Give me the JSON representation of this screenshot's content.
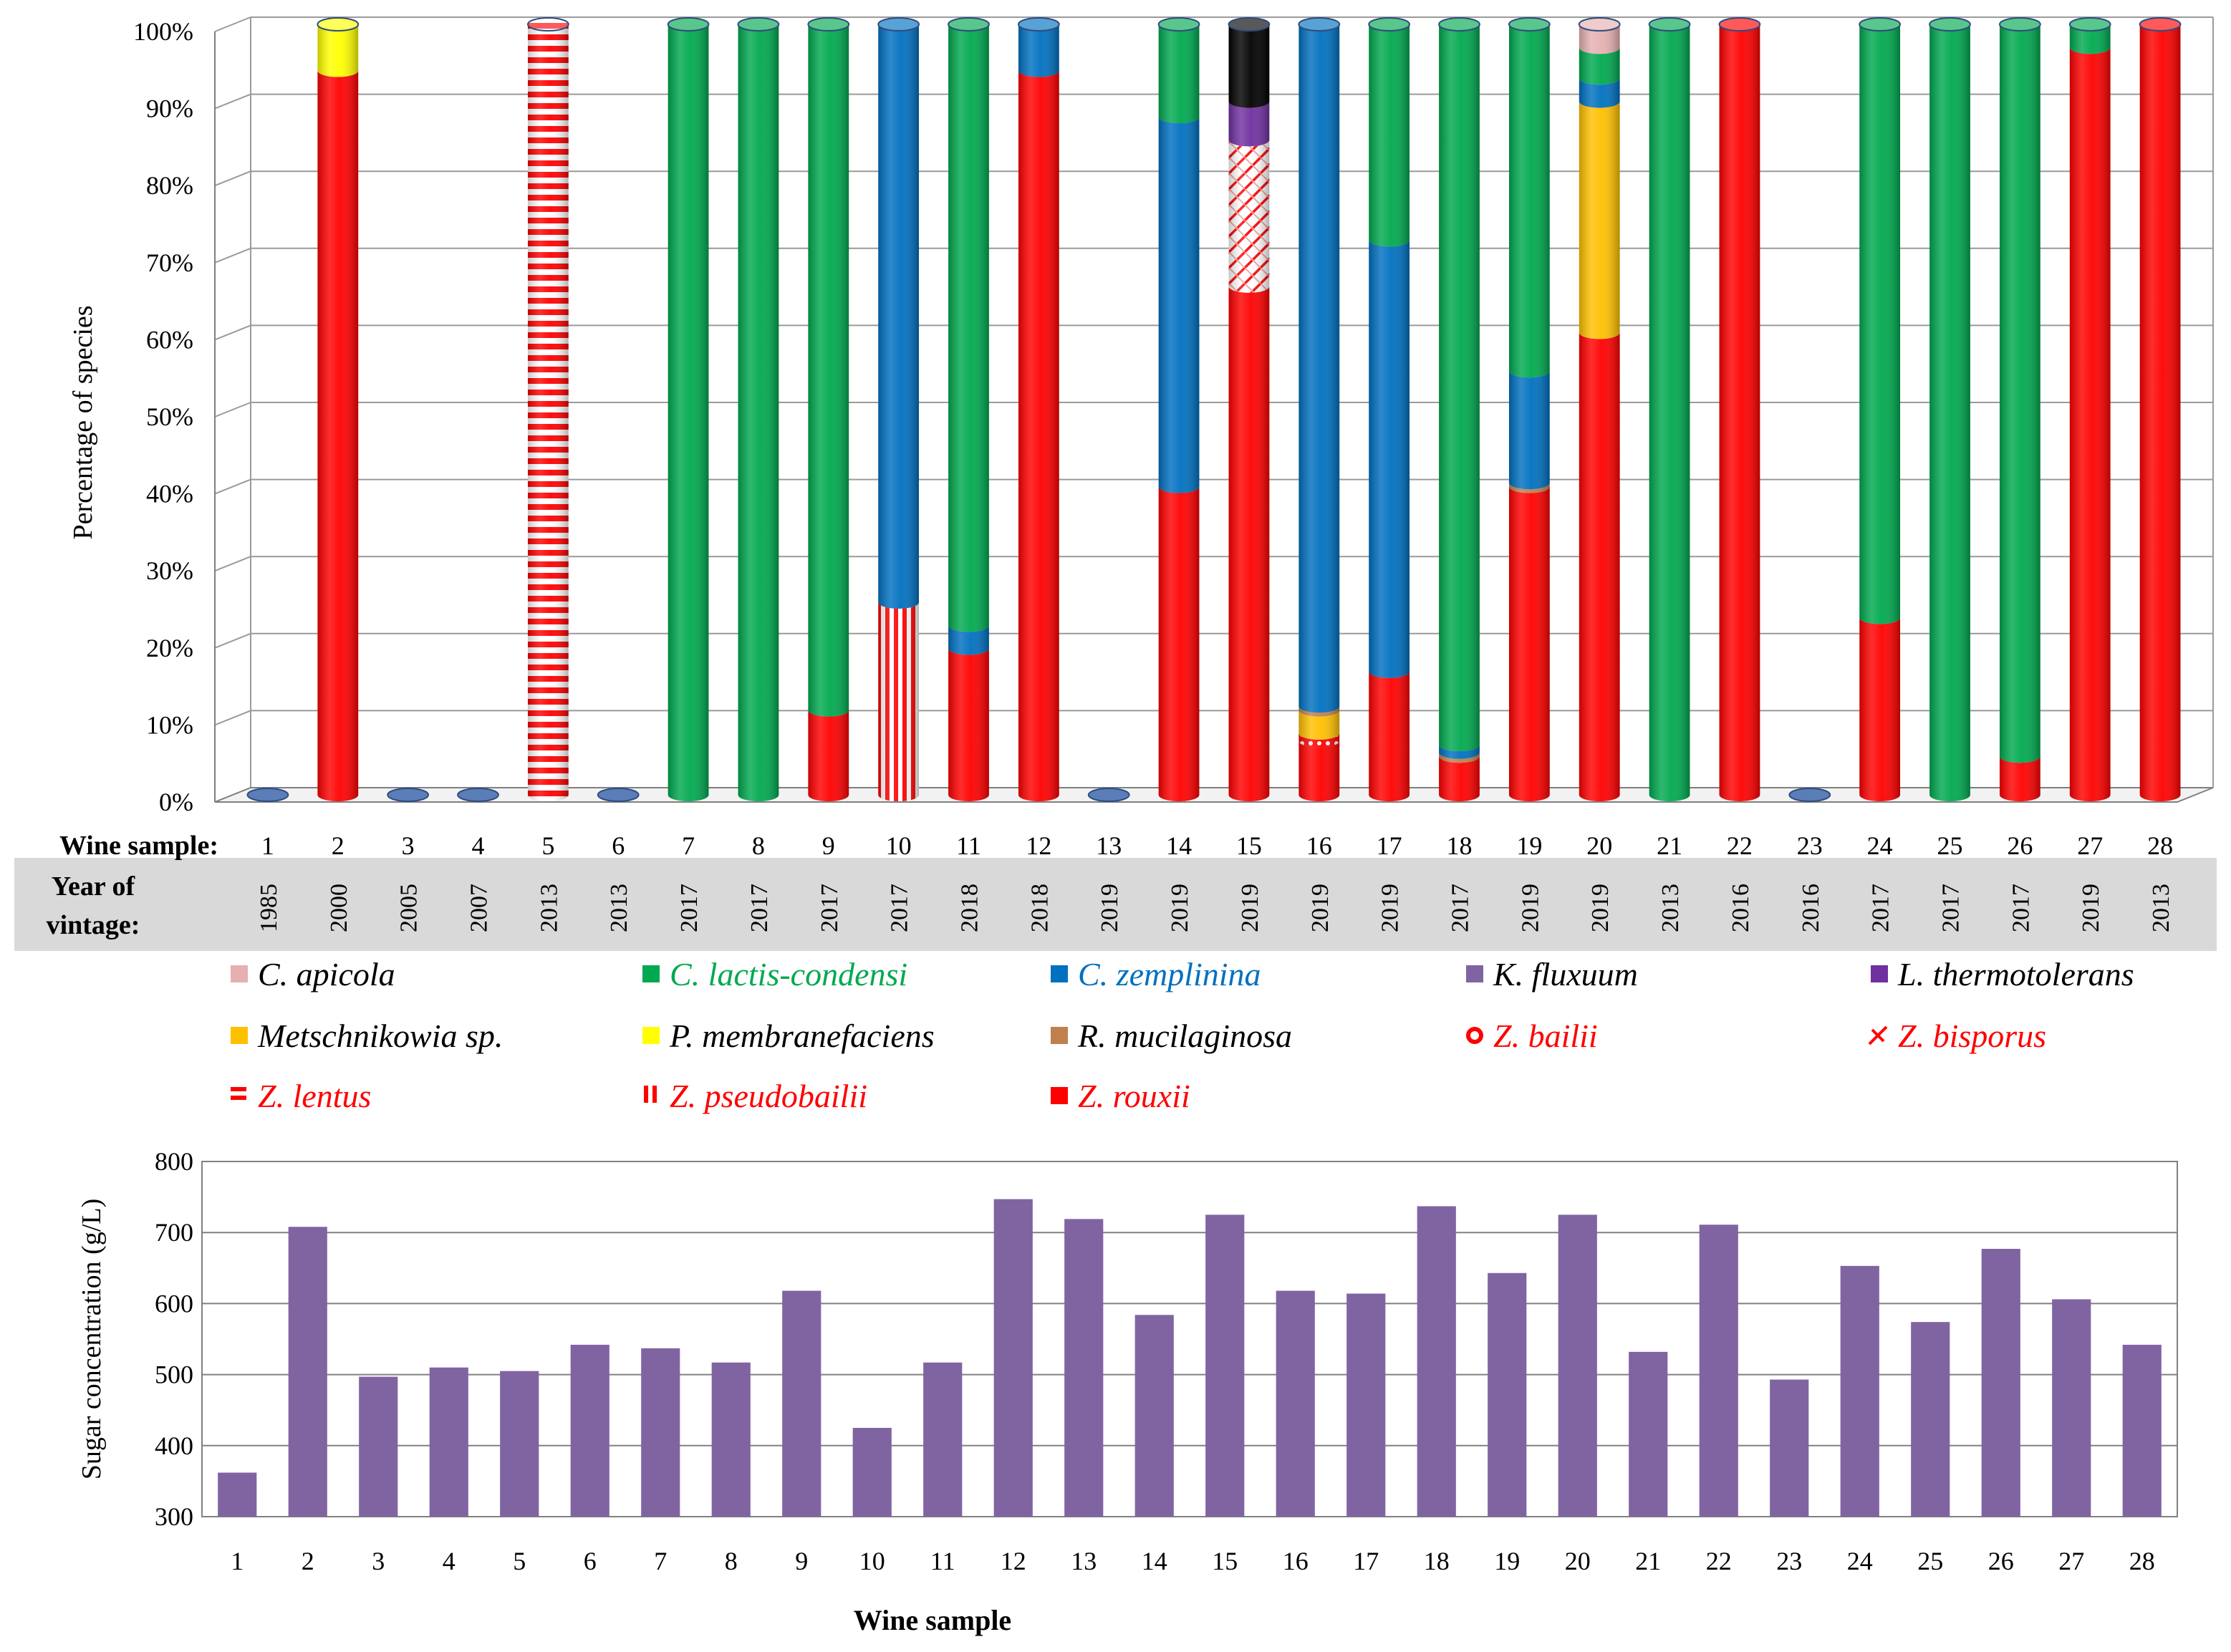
{
  "chart_data": [
    {
      "type": "bar",
      "subtype": "stacked-percent-cylinder",
      "title": "",
      "ylabel": "Percentage of species",
      "ylim": [
        0,
        100
      ],
      "yticks": [
        "0%",
        "10%",
        "20%",
        "30%",
        "40%",
        "50%",
        "60%",
        "70%",
        "80%",
        "90%",
        "100%"
      ],
      "grid": true,
      "row_label_sample": "Wine sample:",
      "row_label_year": [
        "Year of",
        "vintage:"
      ],
      "categories": [
        "1",
        "2",
        "3",
        "4",
        "5",
        "6",
        "7",
        "8",
        "9",
        "10",
        "11",
        "12",
        "13",
        "14",
        "15",
        "16",
        "17",
        "18",
        "19",
        "20",
        "21",
        "22",
        "23",
        "24",
        "25",
        "26",
        "27",
        "28"
      ],
      "vintage_years": [
        "1985",
        "2000",
        "2005",
        "2007",
        "2013",
        "2013",
        "2017",
        "2017",
        "2017",
        "2017",
        "2018",
        "2018",
        "2019",
        "2019",
        "2019",
        "2019",
        "2019",
        "2017",
        "2019",
        "2019",
        "2013",
        "2016",
        "2016",
        "2017",
        "2017",
        "2017",
        "2019",
        "2013"
      ],
      "species": [
        {
          "key": "apicola",
          "name": "C. apicola",
          "color": "#E6B0B0",
          "text_color": "#000000",
          "pattern": "solid",
          "marker": "■"
        },
        {
          "key": "lactis",
          "name": "C. lactis-condensi",
          "color": "#00A94F",
          "text_color": "#00A94F",
          "pattern": "solid",
          "marker": "■"
        },
        {
          "key": "zemplinina",
          "name": "C. zemplinina",
          "color": "#0070C0",
          "text_color": "#0070C0",
          "pattern": "solid",
          "marker": "■"
        },
        {
          "key": "fluxuum",
          "name": "K. fluxuum",
          "color": "#8064A2",
          "text_color": "#000000",
          "pattern": "solid",
          "marker": "■"
        },
        {
          "key": "thermo",
          "name": "L. thermotolerans",
          "color": "#7030A0",
          "text_color": "#000000",
          "pattern": "solid",
          "marker": "■"
        },
        {
          "key": "metsch",
          "name": "Metschnikowia sp.",
          "color": "#FFC000",
          "text_color": "#000000",
          "pattern": "solid",
          "marker": "■"
        },
        {
          "key": "membran",
          "name": "P. membranefaciens",
          "color": "#FFFF00",
          "text_color": "#000000",
          "pattern": "solid",
          "marker": "■"
        },
        {
          "key": "mucil",
          "name": "R. mucilaginosa",
          "color": "#C0804D",
          "text_color": "#000000",
          "pattern": "solid",
          "marker": "■"
        },
        {
          "key": "bailii",
          "name": "Z. bailii",
          "color": "#FF0000",
          "text_color": "#FF0000",
          "pattern": "dots",
          "marker": "■"
        },
        {
          "key": "bisporus",
          "name": "Z. bisporus",
          "color": "#FF0000",
          "text_color": "#FF0000",
          "pattern": "zigzag",
          "marker": "■"
        },
        {
          "key": "lentus",
          "name": "Z. lentus",
          "color": "#FF0000",
          "text_color": "#FF0000",
          "pattern": "hstripes",
          "marker": "■"
        },
        {
          "key": "pseudo",
          "name": "Z. pseudobailii",
          "color": "#FF0000",
          "text_color": "#FF0000",
          "pattern": "vstripes",
          "marker": "■"
        },
        {
          "key": "rouxii",
          "name": "Z. rouxii",
          "color": "#FF0000",
          "text_color": "#FF0000",
          "pattern": "solid",
          "marker": "■"
        },
        {
          "key": "unknown",
          "name": "",
          "color": "#000000",
          "text_color": "#000000",
          "pattern": "solid",
          "marker": ""
        }
      ],
      "stacks": [
        [],
        [
          [
            "rouxii",
            94
          ],
          [
            "membran",
            6
          ]
        ],
        [],
        [],
        [
          [
            "lentus",
            100
          ]
        ],
        [],
        [
          [
            "lactis",
            100
          ]
        ],
        [
          [
            "lactis",
            100
          ]
        ],
        [
          [
            "rouxii",
            11
          ],
          [
            "lactis",
            89
          ]
        ],
        [
          [
            "pseudo",
            25
          ],
          [
            "zemplinina",
            75
          ]
        ],
        [
          [
            "rouxii",
            19
          ],
          [
            "zemplinina",
            3
          ],
          [
            "lactis",
            78
          ]
        ],
        [
          [
            "rouxii",
            94
          ],
          [
            "zemplinina",
            6
          ]
        ],
        [],
        [
          [
            "rouxii",
            40
          ],
          [
            "zemplinina",
            48
          ],
          [
            "lactis",
            12
          ]
        ],
        [
          [
            "rouxii",
            66
          ],
          [
            "bisporus",
            19
          ],
          [
            "thermo",
            5
          ],
          [
            "unknown",
            10
          ]
        ],
        [
          [
            "rouxii",
            7
          ],
          [
            "bailii",
            1
          ],
          [
            "metsch",
            3
          ],
          [
            "mucil",
            0.5
          ],
          [
            "zemplinina",
            88.5
          ]
        ],
        [
          [
            "rouxii",
            16
          ],
          [
            "zemplinina",
            56
          ],
          [
            "lactis",
            28
          ]
        ],
        [
          [
            "rouxii",
            5
          ],
          [
            "mucil",
            0.5
          ],
          [
            "zemplinina",
            1
          ],
          [
            "lactis",
            93.5
          ]
        ],
        [
          [
            "rouxii",
            40
          ],
          [
            "mucil",
            0.5
          ],
          [
            "zemplinina",
            14.5
          ],
          [
            "lactis",
            45
          ]
        ],
        [
          [
            "rouxii",
            60
          ],
          [
            "metsch",
            30
          ],
          [
            "zemplinina",
            3
          ],
          [
            "lactis",
            4
          ],
          [
            "apicola",
            3
          ]
        ],
        [
          [
            "lactis",
            100
          ]
        ],
        [
          [
            "rouxii",
            100
          ]
        ],
        [],
        [
          [
            "rouxii",
            23
          ],
          [
            "lactis",
            77
          ]
        ],
        [
          [
            "lactis",
            100
          ]
        ],
        [
          [
            "rouxii",
            5
          ],
          [
            "lactis",
            95
          ]
        ],
        [
          [
            "rouxii",
            97
          ],
          [
            "lactis",
            3
          ]
        ],
        [
          [
            "rouxii",
            100
          ]
        ]
      ]
    },
    {
      "type": "bar",
      "title": "",
      "xlabel": "Wine sample",
      "ylabel": "Sugar concentration (g/L)",
      "ylim": [
        300,
        800
      ],
      "yticks": [
        300,
        400,
        500,
        600,
        700,
        800
      ],
      "grid": true,
      "bar_color": "#8064A2",
      "categories": [
        "1",
        "2",
        "3",
        "4",
        "5",
        "6",
        "7",
        "8",
        "9",
        "10",
        "11",
        "12",
        "13",
        "14",
        "15",
        "16",
        "17",
        "18",
        "19",
        "20",
        "21",
        "22",
        "23",
        "24",
        "25",
        "26",
        "27",
        "28"
      ],
      "values": [
        362,
        708,
        497,
        510,
        505,
        542,
        537,
        517,
        618,
        425,
        517,
        747,
        719,
        584,
        725,
        618,
        614,
        737,
        643,
        725,
        532,
        711,
        493,
        653,
        574,
        677,
        606,
        542
      ]
    }
  ]
}
